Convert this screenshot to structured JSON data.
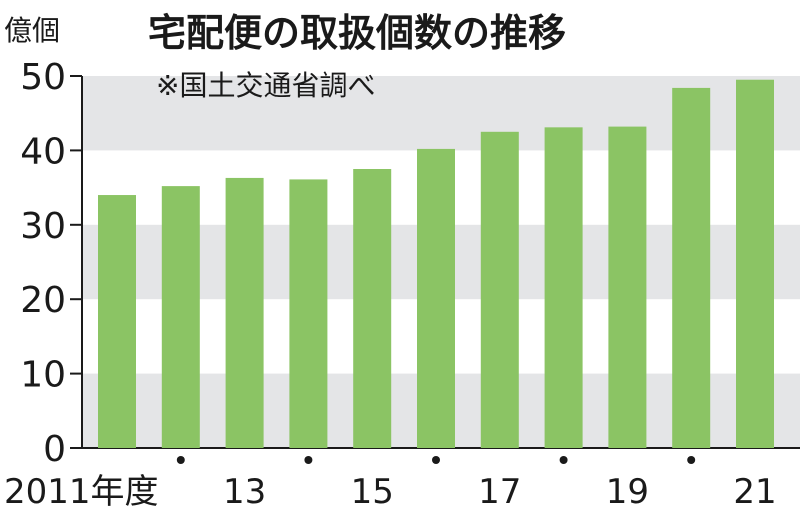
{
  "chart_data": {
    "type": "bar",
    "title": "宅配便の取扱個数の推移",
    "subtitle": "※国土交通省調べ",
    "unit": "億個",
    "categories": [
      "2011",
      "2012",
      "2013",
      "2014",
      "2015",
      "2016",
      "2017",
      "2018",
      "2019",
      "2020",
      "2021"
    ],
    "x_tick_labels": [
      "2011年度",
      "•",
      "13",
      "•",
      "15",
      "•",
      "17",
      "•",
      "19",
      "•",
      "21"
    ],
    "values": [
      34.0,
      35.2,
      36.3,
      36.1,
      37.5,
      40.2,
      42.5,
      43.1,
      43.2,
      48.4,
      49.5
    ],
    "ylim": [
      0,
      50
    ],
    "yticks": [
      0,
      10,
      20,
      30,
      40,
      50
    ],
    "grid": "alternating horizontal bands",
    "bar_color": "#8bc464",
    "band_color": "#e4e5e7",
    "legend": "none"
  }
}
